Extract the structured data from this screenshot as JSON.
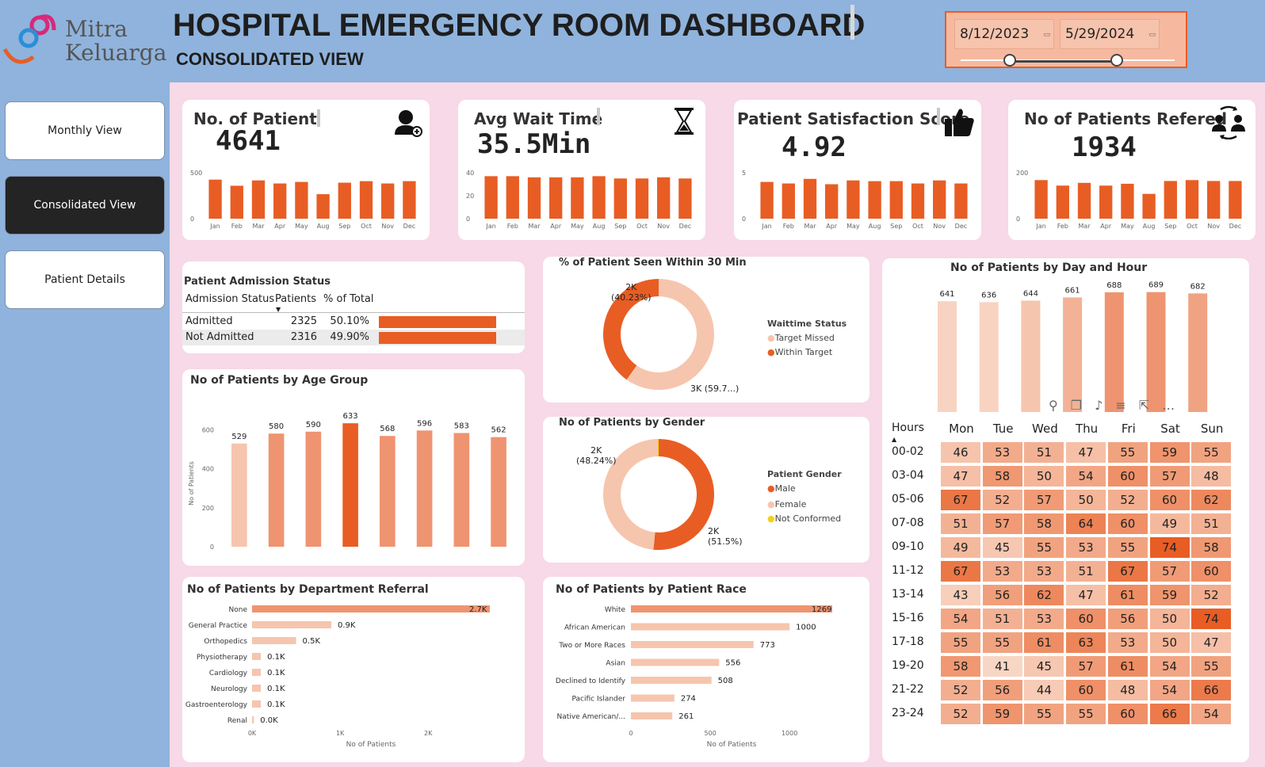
{
  "header": {
    "logo_line1": "Mitra",
    "logo_line2": "Keluarga",
    "title": "HOSPITAL EMERGENCY ROOM DASHBOARD",
    "subtitle": "CONSOLIDATED VIEW",
    "date_start": "8/12/2023",
    "date_end": "5/29/2024"
  },
  "nav": [
    {
      "label": "Monthly View",
      "active": false
    },
    {
      "label": "Consolidated View",
      "active": true
    },
    {
      "label": "Patient Details",
      "active": false
    }
  ],
  "colors": {
    "accent": "#e85d24",
    "light": "#f6c5ad",
    "mid": "#ef9470",
    "page": "#f7d9e7",
    "header": "#8fb3dc"
  },
  "months": [
    "Jan",
    "Feb",
    "Mar",
    "Apr",
    "May",
    "Aug",
    "Sep",
    "Oct",
    "Nov",
    "Dec"
  ],
  "kpis": [
    {
      "title": "No. of Patient",
      "value": "4641",
      "icon": "add-user-icon",
      "yticks": [
        "500",
        "0"
      ],
      "ymax": 600,
      "values": [
        510,
        430,
        500,
        460,
        480,
        320,
        470,
        490,
        460,
        490
      ]
    },
    {
      "title": "Avg Wait Time",
      "value": "35.5Min",
      "icon": "hourglass-icon",
      "yticks": [
        "40",
        "20",
        "0"
      ],
      "ymax": 40,
      "values": [
        37,
        37,
        36,
        36,
        36,
        37,
        35,
        35,
        36,
        35
      ]
    },
    {
      "title": "Patient Satisfaction Score",
      "value": "4.92",
      "icon": "thumbs-up-icon",
      "yticks": [
        "5",
        "0"
      ],
      "ymax": 6,
      "values": [
        4.8,
        4.6,
        5.2,
        4.5,
        5.0,
        4.9,
        4.9,
        4.6,
        5.0,
        4.6
      ]
    },
    {
      "title": "No of Patients Refered",
      "value": "1934",
      "icon": "referral-icon",
      "yticks": [
        "200",
        "0"
      ],
      "ymax": 250,
      "values": [
        210,
        180,
        195,
        180,
        190,
        135,
        205,
        210,
        205,
        205
      ]
    }
  ],
  "admission": {
    "title": "Patient Admission Status",
    "headers": [
      "Admission Status",
      "Patients",
      "% of Total"
    ],
    "rows": [
      {
        "status": "Admitted",
        "patients": "2325",
        "pct": "50.10%",
        "frac": 0.501
      },
      {
        "status": "Not Admitted",
        "patients": "2316",
        "pct": "49.90%",
        "frac": 0.499
      }
    ]
  },
  "seen30": {
    "title": "% of Patient Seen Within 30 Min",
    "legend_title": "Waittime Status",
    "legend": [
      "Target Missed",
      "Within Target"
    ],
    "label_within_a": "2K",
    "label_within_b": "(40.23%)",
    "label_missed": "3K (59.7...)"
  },
  "gender": {
    "title": "No of Patients by Gender",
    "legend_title": "Patient Gender",
    "legend": [
      "Male",
      "Female",
      "Not Conformed"
    ],
    "label_female_a": "2K",
    "label_female_b": "(48.24%)",
    "label_male_a": "2K",
    "label_male_b": "(51.5%)"
  },
  "chart_data": [
    {
      "type": "bar",
      "title": "No of Patients by Age Group",
      "ylabel": "No of Patients",
      "ylim": [
        0,
        650
      ],
      "yticks": [
        "0",
        "200",
        "400",
        "600"
      ],
      "values": [
        529,
        580,
        590,
        633,
        568,
        596,
        583,
        562
      ],
      "value_labels": [
        "529",
        "580",
        "590",
        "633",
        "568",
        "596",
        "583",
        "562"
      ]
    },
    {
      "type": "bar",
      "title": "No of Patients by Department Referral",
      "xlabel": "No of Patients",
      "xticks": [
        "0K",
        "1K",
        "2K"
      ],
      "categories": [
        "None",
        "General Practice",
        "Orthopedics",
        "Physiotherapy",
        "Cardiology",
        "Neurology",
        "Gastroenterology",
        "Renal"
      ],
      "values": [
        2700,
        900,
        500,
        100,
        100,
        100,
        100,
        20
      ],
      "value_labels": [
        "2.7K",
        "0.9K",
        "0.5K",
        "0.1K",
        "0.1K",
        "0.1K",
        "0.1K",
        "0.0K"
      ]
    },
    {
      "type": "bar",
      "title": "No of Patients by Patient Race",
      "xlabel": "No of Patients",
      "xticks": [
        "0",
        "500",
        "1000"
      ],
      "categories": [
        "White",
        "African American",
        "Two or More Races",
        "Asian",
        "Declined to Identify",
        "Pacific Islander",
        "Native American/..."
      ],
      "values": [
        1269,
        1000,
        773,
        556,
        508,
        274,
        261
      ],
      "value_labels": [
        "1269",
        "1000",
        "773",
        "556",
        "508",
        "274",
        "261"
      ]
    },
    {
      "type": "bar",
      "title": "No of Patients by Day and Hour",
      "categories": [
        "Mon",
        "Tue",
        "Wed",
        "Thu",
        "Fri",
        "Sat",
        "Sun"
      ],
      "values": [
        641,
        636,
        644,
        661,
        688,
        689,
        682
      ],
      "value_labels": [
        "641",
        "636",
        "644",
        "661",
        "688",
        "689",
        "682"
      ]
    },
    {
      "type": "donut",
      "title": "% of Patient Seen Within 30 Min",
      "categories": [
        "Within Target",
        "Target Missed"
      ],
      "values": [
        40.23,
        59.77
      ]
    },
    {
      "type": "donut",
      "title": "No of Patients by Gender",
      "categories": [
        "Male",
        "Female",
        "Not Conformed"
      ],
      "values": [
        51.5,
        48.24,
        0.26
      ]
    }
  ],
  "heatmap": {
    "hours_label": "Hours",
    "days": [
      "Mon",
      "Tue",
      "Wed",
      "Thu",
      "Fri",
      "Sat",
      "Sun"
    ],
    "rows": [
      {
        "label": "00-02",
        "values": [
          46,
          53,
          51,
          47,
          55,
          59,
          55
        ]
      },
      {
        "label": "03-04",
        "values": [
          47,
          58,
          50,
          54,
          60,
          57,
          48
        ]
      },
      {
        "label": "05-06",
        "values": [
          67,
          52,
          57,
          50,
          52,
          60,
          62
        ]
      },
      {
        "label": "07-08",
        "values": [
          51,
          57,
          58,
          64,
          60,
          49,
          51
        ]
      },
      {
        "label": "09-10",
        "values": [
          49,
          45,
          55,
          53,
          55,
          74,
          58
        ]
      },
      {
        "label": "11-12",
        "values": [
          67,
          53,
          53,
          51,
          67,
          57,
          60
        ]
      },
      {
        "label": "13-14",
        "values": [
          43,
          56,
          62,
          47,
          61,
          59,
          52
        ]
      },
      {
        "label": "15-16",
        "values": [
          54,
          51,
          53,
          60,
          56,
          50,
          74
        ]
      },
      {
        "label": "17-18",
        "values": [
          55,
          55,
          61,
          63,
          53,
          50,
          47
        ]
      },
      {
        "label": "19-20",
        "values": [
          58,
          41,
          45,
          57,
          61,
          54,
          55
        ]
      },
      {
        "label": "21-22",
        "values": [
          52,
          56,
          44,
          60,
          48,
          54,
          66
        ]
      },
      {
        "label": "23-24",
        "values": [
          52,
          59,
          55,
          55,
          60,
          66,
          54
        ]
      }
    ]
  }
}
